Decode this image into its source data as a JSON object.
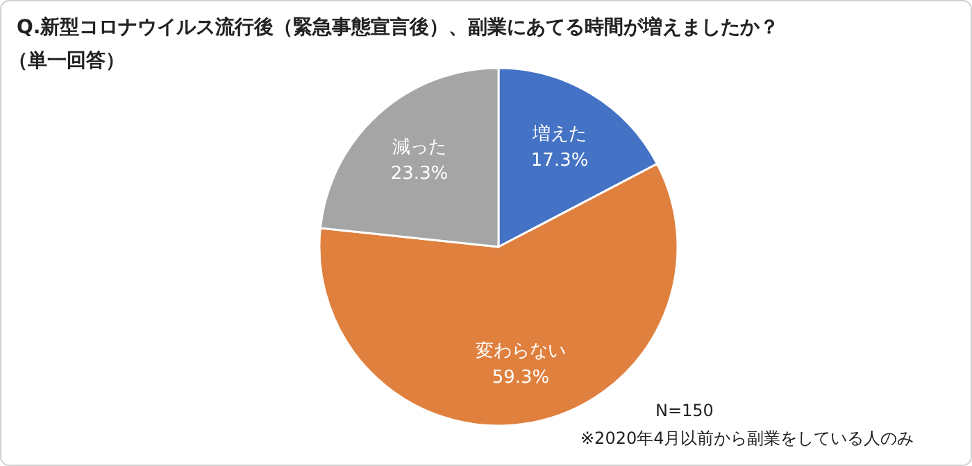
{
  "chart_data": {
    "type": "pie",
    "title": "Q.新型コロナウイルス流行後（緊急事態宣言後）、副業にあてる時間が増えましたか？",
    "subtitle": "（単一回答）",
    "categories": [
      "増えた",
      "変わらない",
      "減った"
    ],
    "values": [
      17.3,
      59.3,
      23.3
    ],
    "value_labels": [
      "17.3%",
      "59.3%",
      "23.3%"
    ],
    "colors": [
      "#4472c4",
      "#e0803f",
      "#a5a5a5"
    ],
    "annotations": [
      "N=150",
      "※2020年4月以前から副業をしている人のみ"
    ]
  }
}
